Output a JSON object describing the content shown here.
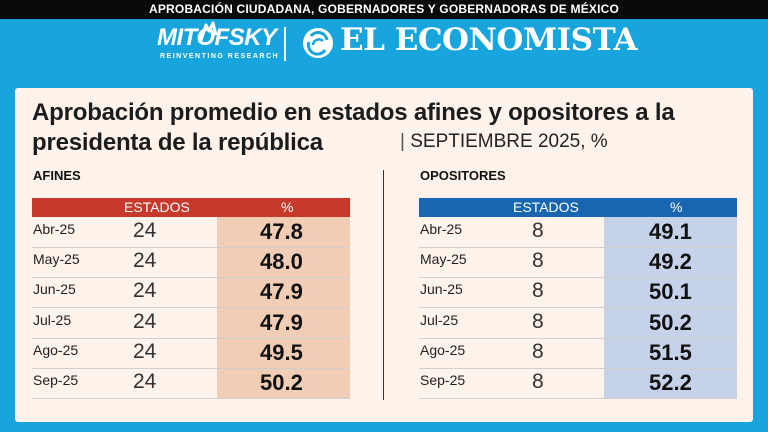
{
  "header": {
    "banner": "APROBACIÓN CIUDADANA, GOBERNADORES Y GOBERNADORAS DE MÉXICO",
    "brand_left": "MITOFSKY",
    "brand_left_tagline": "REINVENTING RESEARCH",
    "brand_right": "EL ECONOMISTA"
  },
  "chart_data": {
    "type": "table",
    "title": "Aprobación promedio en estados afines y opositores a la presidenta de la república",
    "subtitle": "SEPTIEMBRE 2025, %",
    "columns": [
      "ESTADOS",
      "%"
    ],
    "tables": [
      {
        "name": "AFINES",
        "color": "#c6392b",
        "highlight": "#f2cdb5",
        "rows": [
          {
            "month": "Abr-25",
            "estados": 24,
            "pct": "47.8"
          },
          {
            "month": "May-25",
            "estados": 24,
            "pct": "48.0"
          },
          {
            "month": "Jun-25",
            "estados": 24,
            "pct": "47.9"
          },
          {
            "month": "Jul-25",
            "estados": 24,
            "pct": "47.9"
          },
          {
            "month": "Ago-25",
            "estados": 24,
            "pct": "49.5"
          },
          {
            "month": "Sep-25",
            "estados": 24,
            "pct": "50.2"
          }
        ]
      },
      {
        "name": "OPOSITORES",
        "color": "#1866b0",
        "highlight": "#c6d2ea",
        "rows": [
          {
            "month": "Abr-25",
            "estados": 8,
            "pct": "49.1"
          },
          {
            "month": "May-25",
            "estados": 8,
            "pct": "49.2"
          },
          {
            "month": "Jun-25",
            "estados": 8,
            "pct": "50.1"
          },
          {
            "month": "Jul-25",
            "estados": 8,
            "pct": "50.2"
          },
          {
            "month": "Ago-25",
            "estados": 8,
            "pct": "51.5"
          },
          {
            "month": "Sep-25",
            "estados": 8,
            "pct": "52.2"
          }
        ]
      }
    ]
  }
}
